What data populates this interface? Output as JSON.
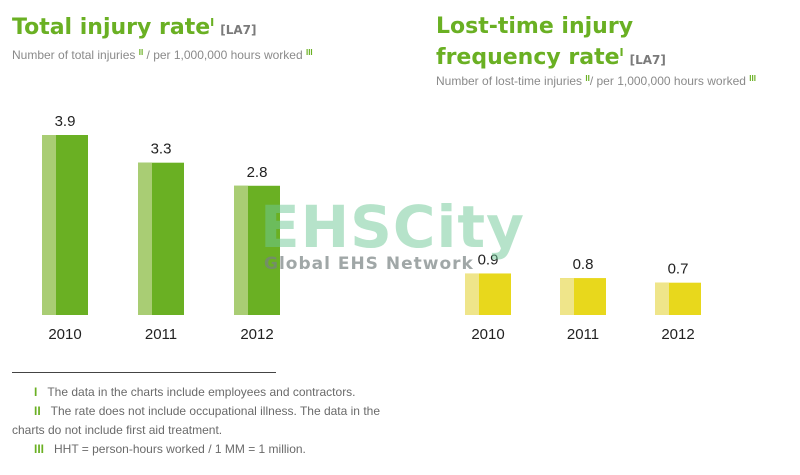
{
  "left": {
    "title": "Total injury rate",
    "title_sup": "I",
    "tag": "[LA7]",
    "subtitle_a": "Number of total injuries",
    "subtitle_sup1": "II",
    "subtitle_b": " / per 1,000,000 hours worked",
    "subtitle_sup2": "III"
  },
  "right": {
    "title_line1": "Lost-time injury",
    "title_line2": "frequency rate",
    "title_sup": "I",
    "tag": "[LA7]",
    "subtitle_a": "Number of lost-time injuries",
    "subtitle_sup1": "II",
    "subtitle_b": "/ per 1,000,000 hours worked",
    "subtitle_sup2": "III"
  },
  "watermark": {
    "big": "EHSCity",
    "small": "Global EHS Network"
  },
  "chart_data": [
    {
      "type": "bar",
      "title": "Total injury rate",
      "categories": [
        "2010",
        "2011",
        "2012"
      ],
      "values": [
        3.9,
        3.3,
        2.8
      ],
      "ylim": [
        0,
        3.9
      ],
      "grid": false,
      "colors": {
        "front": "#6ab023",
        "shade": "#a9cd74"
      }
    },
    {
      "type": "bar",
      "title": "Lost-time injury frequency rate",
      "categories": [
        "2010",
        "2011",
        "2012"
      ],
      "values": [
        0.9,
        0.8,
        0.7
      ],
      "ylim": [
        0,
        3.9
      ],
      "grid": false,
      "colors": {
        "front": "#e8d81c",
        "shade": "#efe58a"
      }
    }
  ],
  "notes": [
    {
      "num": "I",
      "text": "The data in the charts include employees and contractors."
    },
    {
      "num": "II",
      "text": "The rate does not include occupational illness. The data in the charts do not include first aid treatment."
    },
    {
      "num": "III",
      "text": "HHT = person-hours worked / 1 MM = 1 million."
    }
  ]
}
